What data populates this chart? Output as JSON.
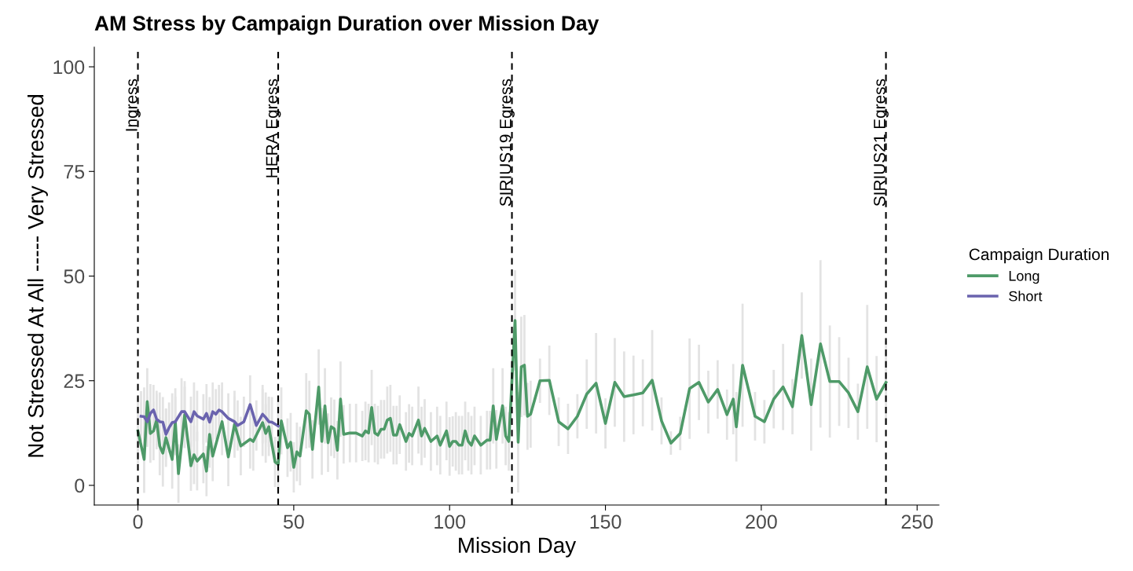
{
  "chart_data": {
    "type": "line",
    "title": "AM Stress by Campaign Duration over Mission Day",
    "xlabel": "Mission Day",
    "ylabel": "Not Stressed At All ----- Very Stressed",
    "legend_title": "Campaign Duration",
    "legend": "right",
    "grid": false,
    "xlim": [
      -14,
      257
    ],
    "xticks": [
      0,
      50,
      100,
      150,
      200,
      250
    ],
    "ylim": [
      -4.7,
      104.7
    ],
    "yticks": [
      0,
      25,
      50,
      75,
      100
    ],
    "ref_lines": [
      {
        "axis": "x",
        "value": 0,
        "label": "Ingress",
        "line_style": "dashed",
        "color": "#000000"
      },
      {
        "axis": "x",
        "value": 45,
        "label": "HERA Egress",
        "line_style": "dashed",
        "color": "#000000"
      },
      {
        "axis": "x",
        "value": 120,
        "label": "SIRIUS19 Egress",
        "line_style": "dashed",
        "color": "#000000"
      },
      {
        "axis": "x",
        "value": 240,
        "label": "SIRIUS21 Egress",
        "line_style": "dashed",
        "color": "#000000"
      }
    ],
    "series": [
      {
        "name": "Long",
        "color": "#4e9a68",
        "x": [
          0,
          2,
          3,
          4,
          5,
          6,
          7,
          8,
          9,
          11,
          12,
          13,
          15,
          17,
          18,
          19,
          21,
          22,
          23,
          24,
          27,
          29,
          31,
          33,
          36,
          37,
          40,
          41,
          42,
          44,
          45,
          46,
          48,
          49,
          50,
          51,
          52,
          54,
          55,
          56,
          58,
          59,
          60,
          61,
          62,
          63,
          64,
          65,
          66,
          68,
          70,
          72,
          73,
          74,
          75,
          76,
          77,
          78,
          79,
          80,
          81,
          82,
          83,
          84,
          86,
          87,
          88,
          90,
          91,
          92,
          94,
          96,
          97,
          99,
          100,
          101,
          102,
          103,
          104,
          105,
          106,
          107,
          108,
          110,
          112,
          113,
          114,
          115,
          117,
          118,
          119,
          121,
          122,
          123,
          124,
          125,
          126,
          129,
          132,
          135,
          138,
          141,
          144,
          147,
          150,
          153,
          156,
          159,
          162,
          165,
          168,
          171,
          174,
          177,
          180,
          183,
          186,
          189,
          191,
          192,
          194,
          198,
          201,
          204,
          207,
          210,
          213,
          216,
          219,
          222,
          225,
          228,
          231,
          234,
          237,
          240
        ],
        "values": [
          13,
          6.2,
          20,
          12.4,
          13,
          15.6,
          9.4,
          7.7,
          11.4,
          6.2,
          15.2,
          2.8,
          16.9,
          4.7,
          7.3,
          5.8,
          7.5,
          3.4,
          12.2,
          7,
          15.2,
          6.8,
          14.6,
          9.4,
          11,
          10.5,
          15,
          12.4,
          14,
          5.6,
          5,
          15.4,
          9,
          10.3,
          4.3,
          8,
          7,
          17.8,
          17,
          8.6,
          23.5,
          10.5,
          19,
          10.2,
          14,
          13.5,
          8.4,
          20.6,
          12.2,
          12.5,
          12.5,
          11.8,
          13,
          12.5,
          18.6,
          12.5,
          12,
          13.4,
          13.4,
          15.6,
          16,
          12,
          12,
          14.5,
          10.5,
          12.4,
          11.8,
          15.6,
          11.8,
          13.6,
          10.5,
          11.8,
          9.6,
          13,
          9.3,
          10.5,
          10.5,
          9.6,
          9.6,
          13,
          10.5,
          9.6,
          11.8,
          9.6,
          10.8,
          10.8,
          19,
          11,
          19,
          11.8,
          10.5,
          39.4,
          10.3,
          28.3,
          28.7,
          16.5,
          17,
          25,
          25.1,
          15.2,
          13.5,
          16.5,
          21.8,
          24.4,
          14.8,
          24.6,
          21.2,
          21.6,
          22.1,
          25.1,
          15.4,
          10.1,
          12.4,
          23.1,
          24.6,
          19.9,
          22.9,
          16.9,
          20.6,
          14,
          28.7,
          16.5,
          15.2,
          20.6,
          23.5,
          18.8,
          35.8,
          19.3,
          33.8,
          24.8,
          24.8,
          22.1,
          17.6,
          28.3,
          20.6,
          24.6
        ],
        "errors": [
          8,
          8,
          8,
          7,
          7,
          7,
          7,
          8,
          7,
          7,
          8,
          7,
          8,
          6,
          7,
          7,
          7,
          6,
          8,
          6,
          8,
          7,
          8,
          7,
          7,
          7,
          8,
          7,
          7,
          6,
          6,
          8,
          7,
          7,
          6,
          7,
          7,
          9,
          8,
          7,
          9,
          8,
          9,
          7,
          7,
          7,
          7,
          9,
          7,
          7,
          7,
          6,
          7,
          7,
          9,
          7,
          7,
          7,
          7,
          8,
          8,
          7,
          7,
          7,
          7,
          7,
          7,
          8,
          7,
          7,
          7,
          7,
          7,
          7,
          7,
          6,
          7,
          7,
          7,
          7,
          7,
          7,
          7,
          7,
          7,
          7,
          9,
          7,
          9,
          7,
          7,
          12,
          12,
          12,
          12,
          8,
          8,
          5.3,
          8.3,
          5.8,
          6,
          5.3,
          8.3,
          12,
          6,
          10.6,
          10.8,
          9.4,
          8,
          12,
          5.6,
          2.8,
          4,
          12,
          9,
          7.5,
          7,
          6,
          8.4,
          8.3,
          14.7,
          5.8,
          5.2,
          7,
          10.3,
          6.6,
          10.3,
          11,
          20,
          13.4,
          10.6,
          8.4,
          6.7,
          14.8,
          10.3,
          10
        ]
      },
      {
        "name": "Short",
        "color": "#6a63ae",
        "x": [
          1,
          2,
          3,
          4,
          5,
          6,
          7,
          8,
          9,
          10,
          11,
          12,
          14,
          15,
          17,
          18,
          19,
          21,
          22,
          23,
          24,
          25,
          26,
          27,
          29,
          31,
          32,
          34,
          36,
          38,
          40,
          41,
          42,
          43,
          45
        ],
        "values": [
          16.5,
          16.4,
          15.2,
          17.2,
          18,
          15.8,
          15.2,
          15.1,
          12.2,
          13.8,
          15,
          15.2,
          17.6,
          17.6,
          15.2,
          17.6,
          16.6,
          15.8,
          17.2,
          15.1,
          17.6,
          17,
          18,
          17.6,
          16,
          15.2,
          14.3,
          15.2,
          19.3,
          14.3,
          17,
          16.2,
          15.2,
          15.1,
          14.2
        ],
        "errors": [
          6,
          7,
          6,
          7,
          6,
          6,
          7,
          6,
          6,
          6,
          7,
          6,
          8,
          6,
          6,
          7,
          6,
          6,
          7,
          6,
          7,
          6,
          6,
          7,
          6,
          6,
          6,
          6,
          7,
          6,
          7,
          6,
          6,
          6,
          6
        ]
      }
    ]
  }
}
